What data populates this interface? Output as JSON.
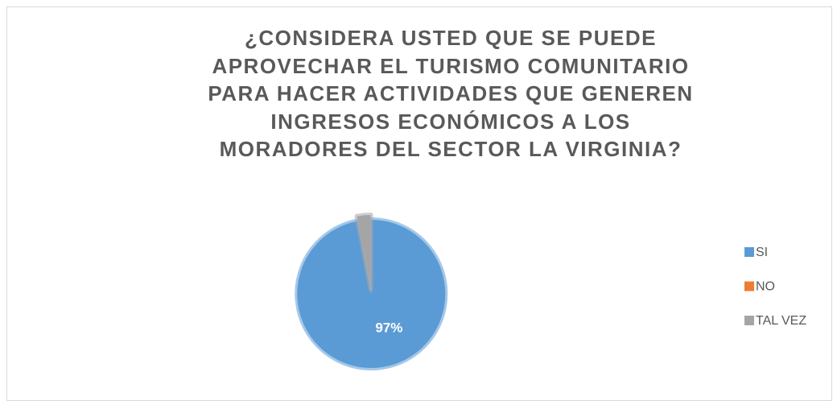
{
  "chart_data": {
    "type": "pie",
    "title": "¿CONSIDERA USTED QUE SE PUEDE APROVECHAR EL TURISMO COMUNITARIO PARA HACER ACTIVIDADES QUE GENEREN INGRESOS ECONÓMICOS A LOS MORADORES DEL SECTOR LA VIRGINIA?",
    "categories": [
      "SI",
      "NO",
      "TAL VEZ"
    ],
    "values": [
      97,
      0,
      3
    ],
    "value_labels": [
      "97%",
      null,
      null
    ],
    "colors": [
      "#5b9bd5",
      "#ed7d31",
      "#a5a5a5"
    ],
    "legend": "right"
  }
}
